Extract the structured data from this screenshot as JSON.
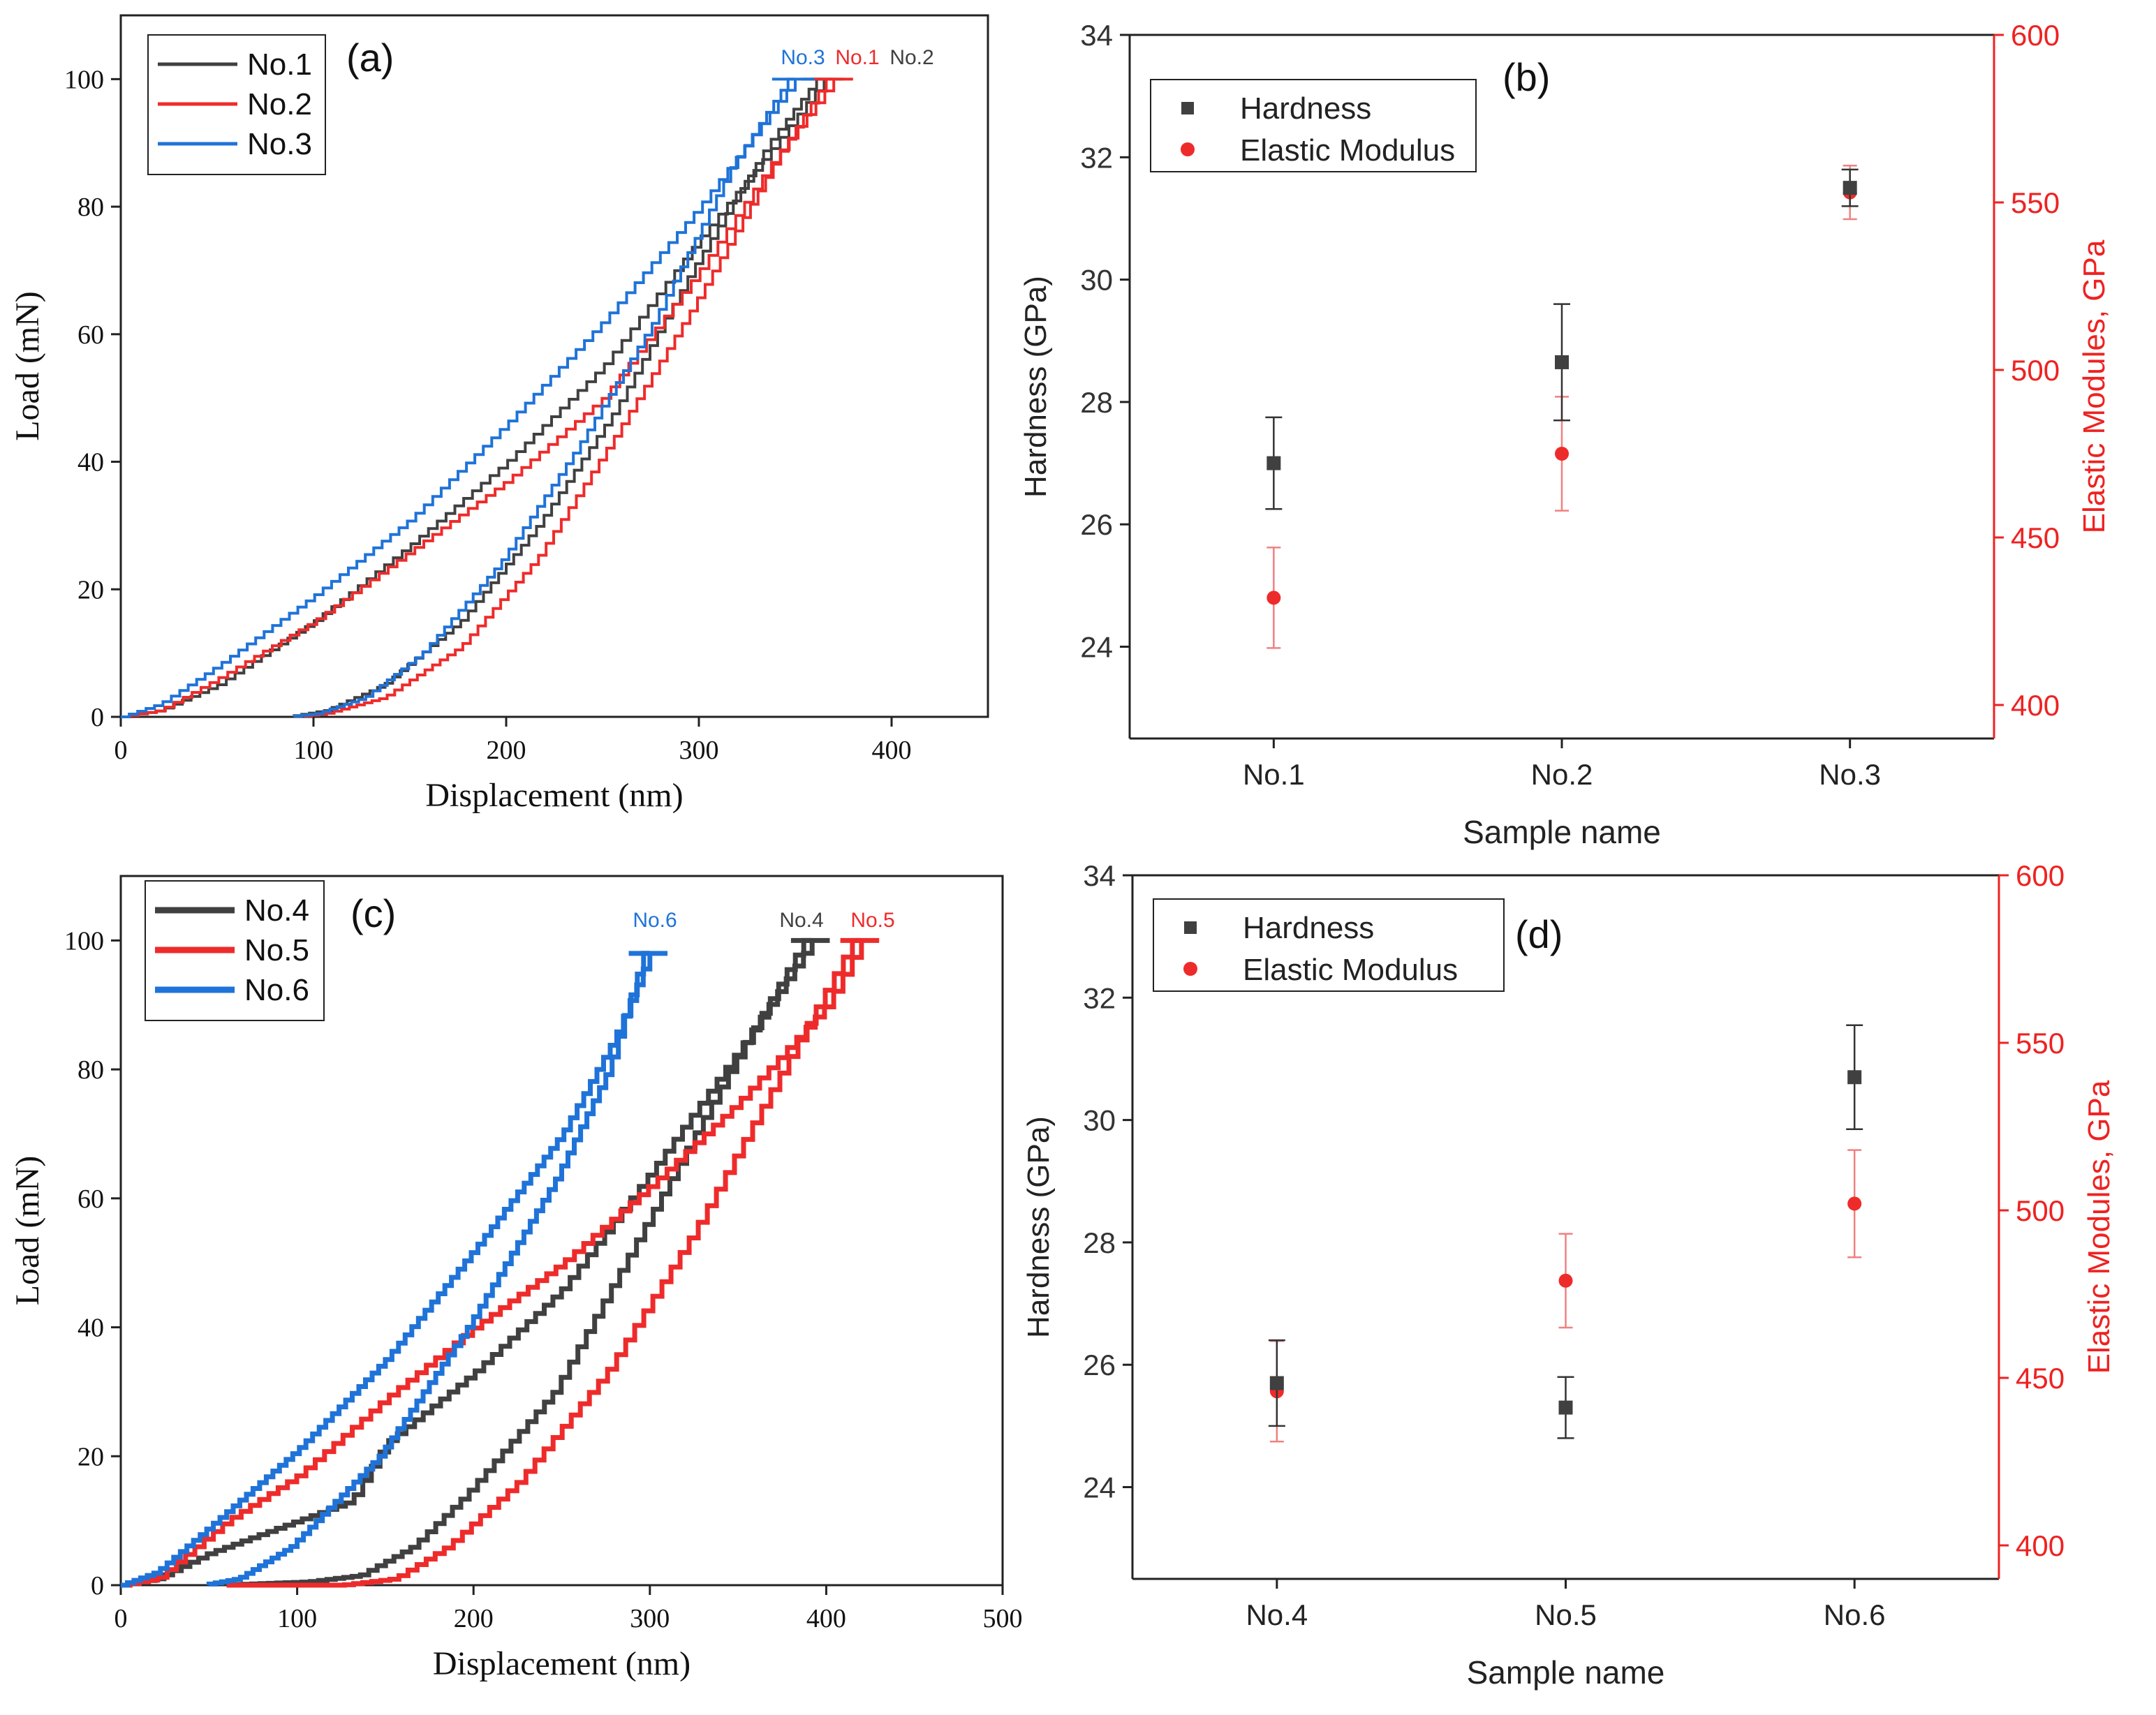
{
  "colors": {
    "black": "#404040",
    "red": "#ee2b2b",
    "blue": "#1f73d8",
    "axis": "#222222",
    "red_axis": "#ee2222"
  },
  "chart_data": [
    {
      "id": "a",
      "type": "line",
      "panel_label": "(a)",
      "xlabel": "Displacement (nm)",
      "ylabel": "Load (mN)",
      "xlim": [
        0,
        450
      ],
      "ylim": [
        0,
        110
      ],
      "xticks": [
        0,
        100,
        200,
        300,
        400
      ],
      "yticks": [
        0,
        20,
        40,
        60,
        80,
        100
      ],
      "legend": [
        "No.1",
        "No.2",
        "No.3"
      ],
      "peak_labels": [
        {
          "text": "No.3",
          "series": "No.3"
        },
        {
          "text": "No.1",
          "series": "No.2"
        },
        {
          "text": "No.2",
          "series": "No.1"
        }
      ],
      "series": [
        {
          "name": "No.1",
          "color": "black",
          "max_depth": 365,
          "loading": [
            [
              0,
              0
            ],
            [
              20,
              1
            ],
            [
              50,
              5
            ],
            [
              100,
              15
            ],
            [
              150,
              27
            ],
            [
              200,
              40
            ],
            [
              250,
              55
            ],
            [
              300,
              75
            ],
            [
              340,
              90
            ],
            [
              365,
              100
            ]
          ],
          "unloading": [
            [
              365,
              100
            ],
            [
              340,
              90
            ],
            [
              300,
              70
            ],
            [
              260,
              48
            ],
            [
              220,
              30
            ],
            [
              180,
              15
            ],
            [
              140,
              5
            ],
            [
              110,
              1
            ],
            [
              90,
              0
            ]
          ]
        },
        {
          "name": "No.2",
          "color": "red",
          "max_depth": 370,
          "loading": [
            [
              0,
              0
            ],
            [
              20,
              1
            ],
            [
              50,
              6
            ],
            [
              100,
              15
            ],
            [
              150,
              26
            ],
            [
              200,
              37
            ],
            [
              250,
              50
            ],
            [
              300,
              70
            ],
            [
              340,
              88
            ],
            [
              370,
              100
            ]
          ],
          "unloading": [
            [
              370,
              100
            ],
            [
              345,
              88
            ],
            [
              300,
              64
            ],
            [
              260,
              44
            ],
            [
              220,
              25
            ],
            [
              180,
              11
            ],
            [
              140,
              3
            ],
            [
              110,
              0.5
            ],
            [
              95,
              0
            ]
          ]
        },
        {
          "name": "No.3",
          "color": "blue",
          "max_depth": 350,
          "loading": [
            [
              0,
              0
            ],
            [
              20,
              2
            ],
            [
              50,
              8
            ],
            [
              100,
              19
            ],
            [
              150,
              31
            ],
            [
              200,
              46
            ],
            [
              250,
              62
            ],
            [
              300,
              80
            ],
            [
              330,
              92
            ],
            [
              350,
              100
            ]
          ],
          "unloading": [
            [
              350,
              100
            ],
            [
              320,
              86
            ],
            [
              280,
              62
            ],
            [
              240,
              42
            ],
            [
              200,
              24
            ],
            [
              160,
              10
            ],
            [
              130,
              3
            ],
            [
              105,
              0.5
            ],
            [
              90,
              0
            ]
          ]
        }
      ]
    },
    {
      "id": "b",
      "type": "scatter",
      "panel_label": "(b)",
      "xlabel": "Sample name",
      "ylabel": "Hardness (GPa)",
      "ylabel_right": "Elastic Modules, GPa",
      "categories": [
        "No.1",
        "No.2",
        "No.3"
      ],
      "ylim": [
        22.5,
        34
      ],
      "ylim_right": [
        390,
        600
      ],
      "yticks": [
        24,
        26,
        28,
        30,
        32,
        34
      ],
      "yticks_right": [
        400,
        450,
        500,
        550,
        600
      ],
      "legend": [
        "Hardness",
        "Elastic Modulus"
      ],
      "series": [
        {
          "name": "Hardness",
          "axis": "left",
          "values": [
            27.0,
            28.65,
            31.5
          ],
          "errors": [
            0.75,
            0.95,
            0.3
          ]
        },
        {
          "name": "Elastic Modulus",
          "axis": "right",
          "values": [
            432,
            475,
            553
          ],
          "errors": [
            15,
            17,
            8
          ]
        }
      ]
    },
    {
      "id": "c",
      "type": "line",
      "panel_label": "(c)",
      "xlabel": "Displacement (nm)",
      "ylabel": "Load (mN)",
      "xlim": [
        0,
        500
      ],
      "ylim": [
        0,
        110
      ],
      "xticks": [
        0,
        100,
        200,
        300,
        400,
        500
      ],
      "yticks": [
        0,
        20,
        40,
        60,
        80,
        100
      ],
      "legend": [
        "No.4",
        "No.5",
        "No.6"
      ],
      "peak_labels": [
        {
          "text": "No.6",
          "series": "No.6"
        },
        {
          "text": "No.4",
          "series": "No.4"
        },
        {
          "text": "No.5",
          "series": "No.5"
        }
      ],
      "series": [
        {
          "name": "No.4",
          "color": "black",
          "max_depth": 392,
          "loading": [
            [
              0,
              0
            ],
            [
              20,
              1
            ],
            [
              50,
              5
            ],
            [
              100,
              10
            ],
            [
              130,
              13
            ],
            [
              150,
              22
            ],
            [
              200,
              33
            ],
            [
              250,
              46
            ],
            [
              300,
              64
            ],
            [
              350,
              83
            ],
            [
              392,
              100
            ]
          ],
          "unloading": [
            [
              392,
              100
            ],
            [
              350,
              80
            ],
            [
              300,
              55
            ],
            [
              250,
              30
            ],
            [
              200,
              14
            ],
            [
              170,
              6
            ],
            [
              140,
              1.5
            ],
            [
              110,
              0.5
            ],
            [
              60,
              0
            ]
          ]
        },
        {
          "name": "No.5",
          "color": "red",
          "max_depth": 420,
          "loading": [
            [
              0,
              0
            ],
            [
              20,
              1
            ],
            [
              60,
              10
            ],
            [
              100,
              17
            ],
            [
              150,
              29
            ],
            [
              200,
              40
            ],
            [
              250,
              50
            ],
            [
              300,
              62
            ],
            [
              350,
              75
            ],
            [
              400,
              90
            ],
            [
              420,
              100
            ]
          ],
          "unloading": [
            [
              420,
              100
            ],
            [
              380,
              80
            ],
            [
              330,
              55
            ],
            [
              280,
              33
            ],
            [
              230,
              16
            ],
            [
              190,
              6
            ],
            [
              160,
              1
            ],
            [
              130,
              0
            ],
            [
              60,
              0
            ]
          ]
        },
        {
          "name": "No.6",
          "color": "blue",
          "max_depth": 300,
          "loading": [
            [
              0,
              0
            ],
            [
              20,
              2
            ],
            [
              50,
              9
            ],
            [
              100,
              21
            ],
            [
              150,
              35
            ],
            [
              200,
              52
            ],
            [
              250,
              70
            ],
            [
              280,
              85
            ],
            [
              300,
              98
            ]
          ],
          "unloading": [
            [
              300,
              98
            ],
            [
              280,
              80
            ],
            [
              250,
              63
            ],
            [
              200,
              40
            ],
            [
              150,
              20
            ],
            [
              100,
              6
            ],
            [
              70,
              1
            ],
            [
              50,
              0
            ]
          ]
        }
      ]
    },
    {
      "id": "d",
      "type": "scatter",
      "panel_label": "(d)",
      "xlabel": "Sample name",
      "ylabel": "Hardness (GPa)",
      "ylabel_right": "Elastic Modules, GPa",
      "categories": [
        "No.4",
        "No.5",
        "No.6"
      ],
      "ylim": [
        22.5,
        34
      ],
      "ylim_right": [
        390,
        600
      ],
      "yticks": [
        24,
        26,
        28,
        30,
        32,
        34
      ],
      "yticks_right": [
        400,
        450,
        500,
        550,
        600
      ],
      "legend": [
        "Hardness",
        "Elastic Modulus"
      ],
      "series": [
        {
          "name": "Hardness",
          "axis": "left",
          "values": [
            25.7,
            25.3,
            30.7
          ],
          "errors": [
            0.7,
            0.5,
            0.85
          ]
        },
        {
          "name": "Elastic Modulus",
          "axis": "right",
          "values": [
            446,
            479,
            502
          ],
          "errors": [
            15,
            14,
            16
          ]
        }
      ]
    }
  ]
}
